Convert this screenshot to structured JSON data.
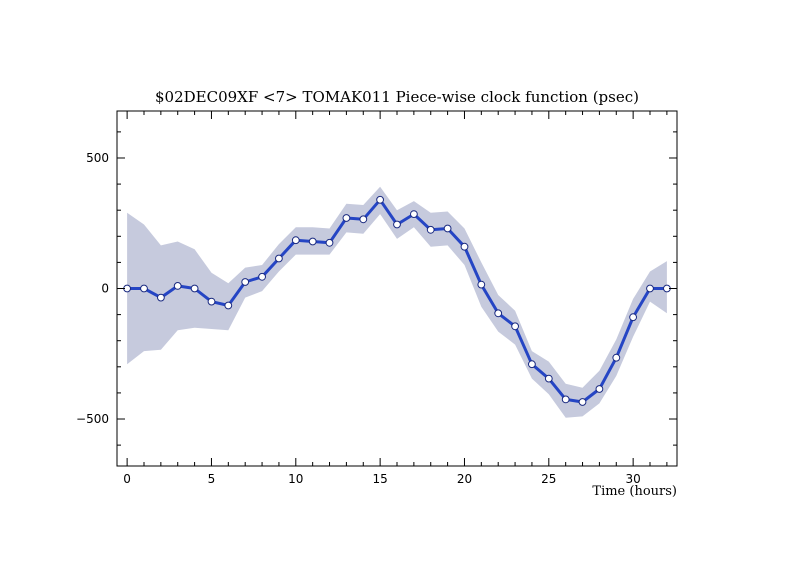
{
  "chart_data": {
    "type": "line",
    "title": "$02DEC09XF <7>  TOMAK011  Piece-wise clock function (psec)",
    "xlabel": "Time (hours)",
    "ylabel": "",
    "xlim": [
      -0.6,
      32.6
    ],
    "ylim": [
      -680,
      680
    ],
    "x_ticks": [
      0,
      5,
      10,
      15,
      20,
      25,
      30
    ],
    "y_ticks": [
      -500,
      0,
      500
    ],
    "x_tick_labels": [
      "0",
      "5",
      "10",
      "15",
      "20",
      "25",
      "30"
    ],
    "y_tick_labels": [
      "−500",
      "0",
      "500"
    ],
    "grid": false,
    "series": [
      {
        "x": [
          0,
          1,
          2,
          3,
          4,
          5,
          6,
          7,
          8,
          9,
          10,
          11,
          12,
          13,
          14,
          15,
          16,
          17,
          18,
          19,
          20,
          21,
          22,
          23,
          24,
          25,
          26,
          27,
          28,
          29,
          30,
          31,
          32
        ],
        "values": [
          0,
          0,
          -35,
          10,
          0,
          -50,
          -65,
          25,
          45,
          115,
          185,
          180,
          175,
          270,
          265,
          340,
          245,
          285,
          225,
          230,
          160,
          15,
          -95,
          -145,
          -290,
          -345,
          -425,
          -435,
          -385,
          -265,
          -110,
          0,
          0
        ],
        "band_upper": [
          290,
          245,
          165,
          180,
          150,
          60,
          20,
          80,
          90,
          170,
          235,
          235,
          230,
          325,
          320,
          390,
          300,
          335,
          290,
          295,
          230,
          100,
          -25,
          -85,
          -240,
          -280,
          -365,
          -380,
          -315,
          -195,
          -40,
          65,
          105
        ],
        "band_lower": [
          -290,
          -240,
          -235,
          -160,
          -150,
          -155,
          -160,
          -35,
          -10,
          65,
          130,
          130,
          130,
          215,
          210,
          285,
          190,
          235,
          160,
          165,
          90,
          -70,
          -165,
          -215,
          -345,
          -405,
          -495,
          -490,
          -440,
          -335,
          -185,
          -50,
          -95
        ]
      }
    ],
    "colors": {
      "line": "#2545c4",
      "band": "#c6cadd",
      "marker_fill": "#ffffff"
    }
  }
}
